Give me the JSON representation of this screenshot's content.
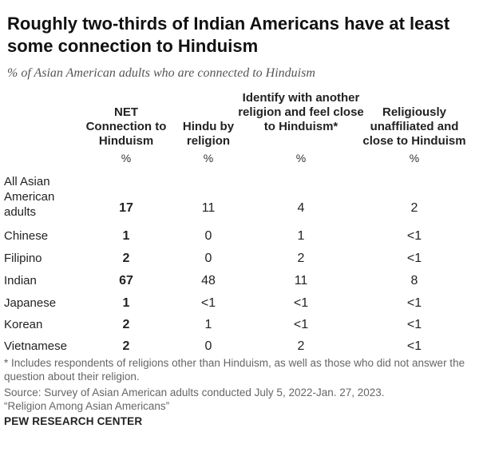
{
  "title": "Roughly two-thirds of Indian Americans have at least some connection to Hinduism",
  "subtitle": "% of Asian American adults who are connected to Hinduism",
  "chart_data": {
    "type": "table",
    "columns": [
      "NET Connection to Hinduism",
      "Hindu by religion",
      "Identify with another religion and feel close to Hinduism*",
      "Religiously unaffiliated and close to Hinduism"
    ],
    "unit": "%",
    "rows": [
      {
        "label": "All Asian American adults",
        "values": [
          "17",
          "11",
          "4",
          "2"
        ]
      },
      {
        "label": "Chinese",
        "values": [
          "1",
          "0",
          "1",
          "<1"
        ]
      },
      {
        "label": "Filipino",
        "values": [
          "2",
          "0",
          "2",
          "<1"
        ]
      },
      {
        "label": "Indian",
        "values": [
          "67",
          "48",
          "11",
          "8"
        ]
      },
      {
        "label": "Japanese",
        "values": [
          "1",
          "<1",
          "<1",
          "<1"
        ]
      },
      {
        "label": "Korean",
        "values": [
          "2",
          "1",
          "<1",
          "<1"
        ]
      },
      {
        "label": "Vietnamese",
        "values": [
          "2",
          "0",
          "2",
          "<1"
        ]
      }
    ]
  },
  "footnote": "* Includes respondents of religions other than Hinduism, as well as those who did not answer the question about their religion.",
  "source": "Source: Survey of Asian American adults conducted July 5, 2022-Jan. 27, 2023.",
  "report": "“Religion Among Asian Americans”",
  "brand": "PEW RESEARCH CENTER"
}
